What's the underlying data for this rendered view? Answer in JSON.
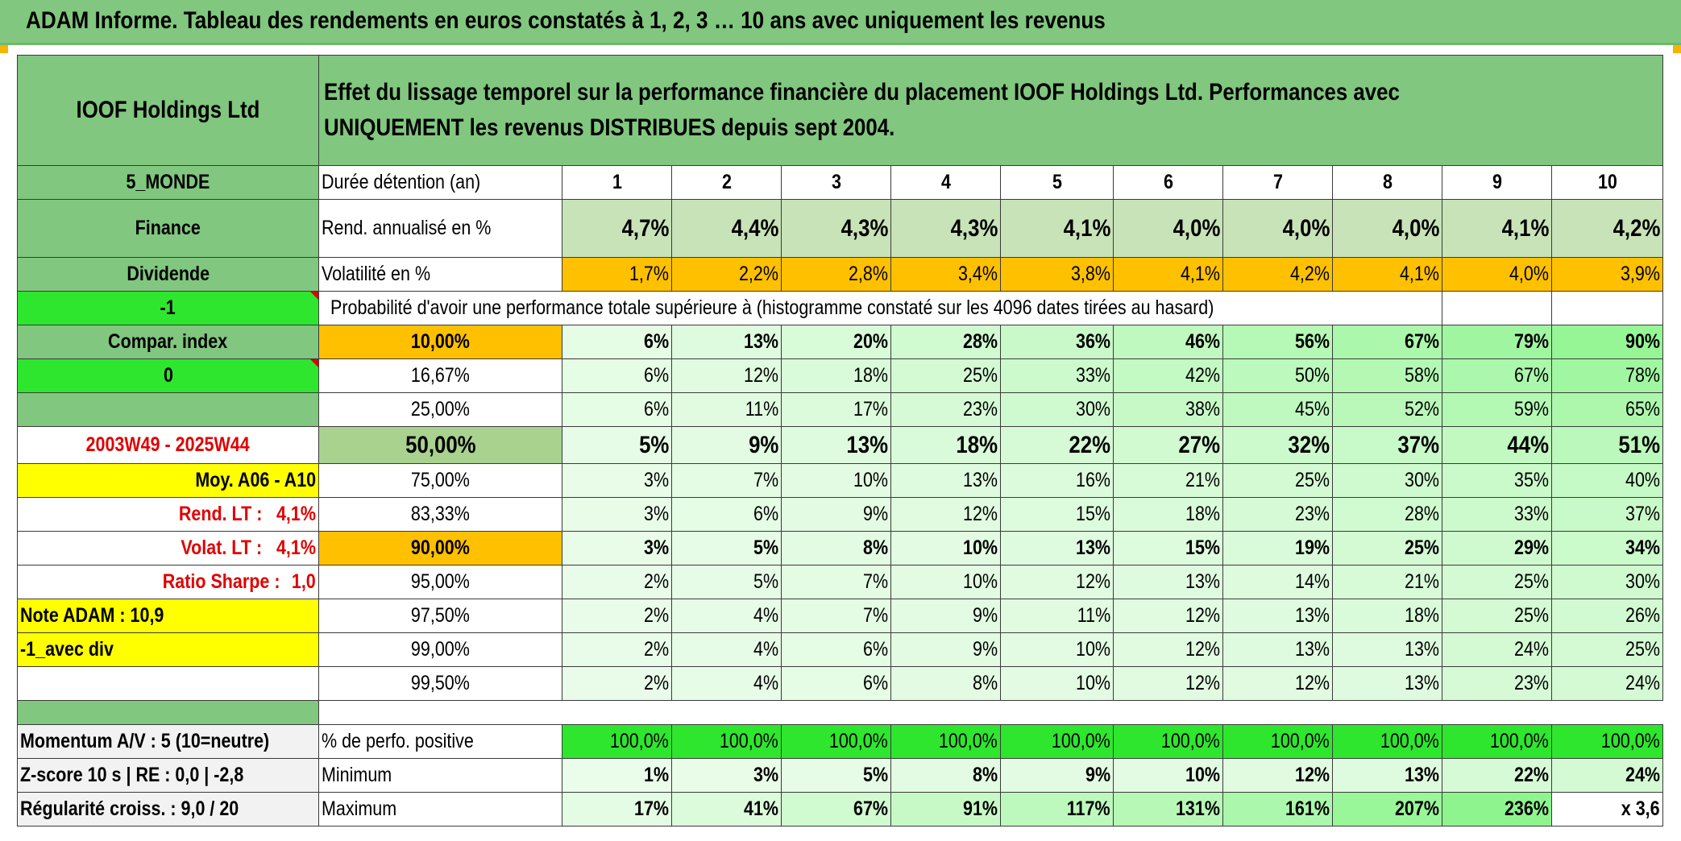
{
  "banner": "ADAM Informe. Tableau des rendements en euros constatés à 1, 2, 3 … 10 ans avec uniquement les revenus",
  "company": "IOOF Holdings Ltd",
  "header_desc": "Effet du lissage temporel sur la performance financière du placement IOOF Holdings Ltd. Performances avec UNIQUEMENT les revenus DISTRIBUES depuis sept 2004.",
  "left": {
    "region": "5_MONDE",
    "sector": "Finance",
    "type": "Dividende",
    "param1": "-1",
    "compar": "Compar. index",
    "param2": "0",
    "period": "2003W49 - 2025W44",
    "moy": "Moy. A06 - A10",
    "rend_lt_label": "Rend. LT :",
    "rend_lt_value": "4,1%",
    "volat_lt_label": "Volat. LT :",
    "volat_lt_value": "4,1%",
    "sharpe_label": "Ratio Sharpe :",
    "sharpe_value": "1,0",
    "note": "Note ADAM : 10,9",
    "div": "-1_avec div",
    "momentum": "Momentum A/V : 5 (10=neutre)",
    "zscore": "Z-score 10 s | RE : 0,0 | -2,8",
    "regularite": "Régularité croiss. : 9,0 / 20"
  },
  "labels": {
    "duree": "Durée détention (an)",
    "rend": "Rend. annualisé en %",
    "volat": "Volatilité en %",
    "proba": "Probabilité d'avoir une performance totale supérieure à (histogramme constaté sur les 4096 dates tirées au hasard)",
    "positive": "% de perfo. positive",
    "minimum": "Minimum",
    "maximum": "Maximum"
  },
  "years": [
    "1",
    "2",
    "3",
    "4",
    "5",
    "6",
    "7",
    "8",
    "9",
    "10"
  ],
  "rend": [
    "4,7%",
    "4,4%",
    "4,3%",
    "4,3%",
    "4,1%",
    "4,0%",
    "4,0%",
    "4,0%",
    "4,1%",
    "4,2%"
  ],
  "volat": [
    "1,7%",
    "2,2%",
    "2,8%",
    "3,4%",
    "3,8%",
    "4,1%",
    "4,2%",
    "4,1%",
    "4,0%",
    "3,9%"
  ],
  "prob_rows": [
    {
      "threshold": "10,00%",
      "values": [
        "6%",
        "13%",
        "20%",
        "28%",
        "36%",
        "46%",
        "56%",
        "67%",
        "79%",
        "90%"
      ]
    },
    {
      "threshold": "16,67%",
      "values": [
        "6%",
        "12%",
        "18%",
        "25%",
        "33%",
        "42%",
        "50%",
        "58%",
        "67%",
        "78%"
      ]
    },
    {
      "threshold": "25,00%",
      "values": [
        "6%",
        "11%",
        "17%",
        "23%",
        "30%",
        "38%",
        "45%",
        "52%",
        "59%",
        "65%"
      ]
    },
    {
      "threshold": "50,00%",
      "values": [
        "5%",
        "9%",
        "13%",
        "18%",
        "22%",
        "27%",
        "32%",
        "37%",
        "44%",
        "51%"
      ]
    },
    {
      "threshold": "75,00%",
      "values": [
        "3%",
        "7%",
        "10%",
        "13%",
        "16%",
        "21%",
        "25%",
        "30%",
        "35%",
        "40%"
      ]
    },
    {
      "threshold": "83,33%",
      "values": [
        "3%",
        "6%",
        "9%",
        "12%",
        "15%",
        "18%",
        "23%",
        "28%",
        "33%",
        "37%"
      ]
    },
    {
      "threshold": "90,00%",
      "values": [
        "3%",
        "5%",
        "8%",
        "10%",
        "13%",
        "15%",
        "19%",
        "25%",
        "29%",
        "34%"
      ]
    },
    {
      "threshold": "95,00%",
      "values": [
        "2%",
        "5%",
        "7%",
        "10%",
        "12%",
        "13%",
        "14%",
        "21%",
        "25%",
        "30%"
      ]
    },
    {
      "threshold": "97,50%",
      "values": [
        "2%",
        "4%",
        "7%",
        "9%",
        "11%",
        "12%",
        "13%",
        "18%",
        "25%",
        "26%"
      ]
    },
    {
      "threshold": "99,00%",
      "values": [
        "2%",
        "4%",
        "6%",
        "9%",
        "10%",
        "12%",
        "13%",
        "13%",
        "24%",
        "25%"
      ]
    },
    {
      "threshold": "99,50%",
      "values": [
        "2%",
        "4%",
        "6%",
        "8%",
        "10%",
        "12%",
        "12%",
        "13%",
        "23%",
        "24%"
      ]
    }
  ],
  "positive": [
    "100,0%",
    "100,0%",
    "100,0%",
    "100,0%",
    "100,0%",
    "100,0%",
    "100,0%",
    "100,0%",
    "100,0%",
    "100,0%"
  ],
  "minimum": [
    "1%",
    "3%",
    "5%",
    "8%",
    "9%",
    "10%",
    "12%",
    "13%",
    "22%",
    "24%"
  ],
  "maximum": [
    "17%",
    "41%",
    "67%",
    "91%",
    "117%",
    "131%",
    "161%",
    "207%",
    "236%",
    "x 3,6"
  ],
  "colors": {
    "header_green": "#81c77f",
    "bright_green": "#2ee62e",
    "orange": "#ffc000",
    "yellow": "#ffff00",
    "red_text": "#e00000"
  }
}
